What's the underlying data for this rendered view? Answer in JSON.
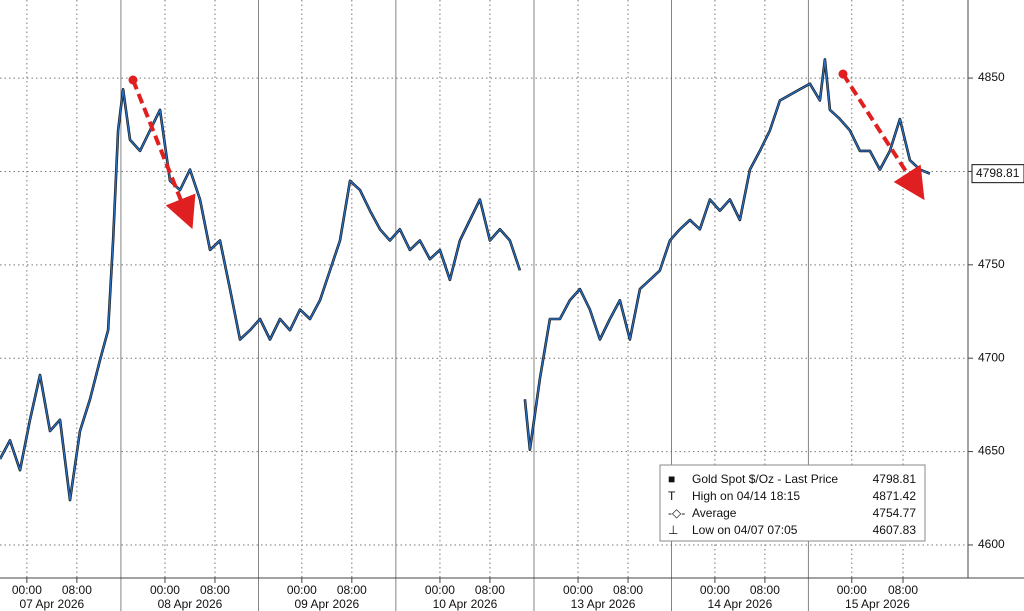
{
  "chart_data": {
    "type": "line",
    "x": [
      0,
      1.6,
      3.2,
      4.8,
      6.4,
      8,
      9.6,
      11.2,
      12.8,
      14.4,
      16,
      17.3,
      18.1,
      18.9,
      19.7,
      20.8,
      22.4,
      24,
      25.6,
      27.2,
      28.8,
      30.4,
      32,
      33.6,
      35.2,
      36.8,
      38.4,
      40,
      41.6,
      43.2,
      44.8,
      46.4,
      48,
      49.6,
      51.2,
      52.8,
      54.4,
      56,
      57.6,
      59.2,
      60.8,
      62.4,
      64,
      65.6,
      67.2,
      68.8,
      70.4,
      72,
      73.6,
      75.2,
      76.8,
      78.4,
      80,
      81.6,
      83.2,
      83.6,
      84,
      84.8,
      86.4,
      88,
      89.6,
      91.2,
      92.8,
      94.4,
      96,
      97.6,
      99.2,
      100.8,
      102.4,
      104,
      105.6,
      107.2,
      108.8,
      110.4,
      112,
      113.6,
      115.2,
      116.8,
      118.4,
      120,
      121.6,
      123.2,
      124.8,
      126.4,
      128,
      129.6,
      131.2,
      132,
      132.8,
      134.4,
      136,
      137.6,
      139.2,
      140.8,
      142.4,
      144,
      145.6,
      147.2,
      148.8
    ],
    "series": [
      {
        "name": "Gold Spot $/Oz - Last Price",
        "color": "#2a6ebd",
        "values": [
          4646,
          4656,
          4640,
          4667,
          4691,
          4661,
          4667,
          4624,
          4661,
          4678,
          4699,
          4715,
          4763,
          4822,
          4844,
          4817,
          4811,
          4822,
          4833,
          4795,
          4790,
          4801,
          4785,
          4758,
          4763,
          4737,
          4710,
          4715,
          4721,
          4710,
          4721,
          4715,
          4726,
          4721,
          4731,
          4747,
          4763,
          4795,
          4790,
          4779,
          4769,
          4763,
          4769,
          4758,
          4763,
          4753,
          4758,
          4742,
          4763,
          4774,
          4785,
          4763,
          4769,
          4763,
          4747,
          null,
          4678,
          4651,
          4689,
          4721,
          4721,
          4731,
          4737,
          4726,
          4710,
          4721,
          4731,
          4710,
          4737,
          4742,
          4747,
          4763,
          4769,
          4774,
          4769,
          4785,
          4779,
          4785,
          4774,
          4801,
          4811,
          4822,
          4838,
          4841,
          4844,
          4847,
          4838,
          4860,
          4833,
          4828,
          4822,
          4811,
          4811,
          4801,
          4811,
          4828,
          4806,
          4801,
          4798.81
        ]
      }
    ],
    "xlim": [
      0,
      154.9
    ],
    "xticks": [
      {
        "value": 4.3,
        "label": "00:00"
      },
      {
        "value": 12.3,
        "label": "08:00"
      },
      {
        "value": 26.4,
        "label": "00:00"
      },
      {
        "value": 34.4,
        "label": "08:00"
      },
      {
        "value": 48.3,
        "label": "00:00"
      },
      {
        "value": 56.3,
        "label": "08:00"
      },
      {
        "value": 70.4,
        "label": "00:00"
      },
      {
        "value": 78.4,
        "label": "08:00"
      },
      {
        "value": 92.5,
        "label": "00:00"
      },
      {
        "value": 100.5,
        "label": "08:00"
      },
      {
        "value": 114.4,
        "label": "00:00"
      },
      {
        "value": 122.4,
        "label": "08:00"
      },
      {
        "value": 136.3,
        "label": "00:00"
      },
      {
        "value": 144.5,
        "label": "08:00"
      }
    ],
    "x_groups": [
      "07 Apr 2026",
      "08 Apr 2026",
      "09 Apr 2026",
      "10 Apr 2026",
      "13 Apr 2026",
      "14 Apr 2026",
      "15 Apr 2026"
    ],
    "ylim": [
      4582.3,
      4891.8
    ],
    "yticks": [
      4600,
      4650,
      4700,
      4750,
      4800,
      4850
    ],
    "grid": true,
    "legend_box": [
      {
        "label": "Gold Spot $/Oz - Last Price",
        "value": 4798.81
      },
      {
        "label": "High on 04/14 18:15",
        "value": 4871.42
      },
      {
        "label": "Average",
        "value": 4754.77
      },
      {
        "label": "Low on 04/07 07:05",
        "value": 4607.83
      }
    ]
  }
}
